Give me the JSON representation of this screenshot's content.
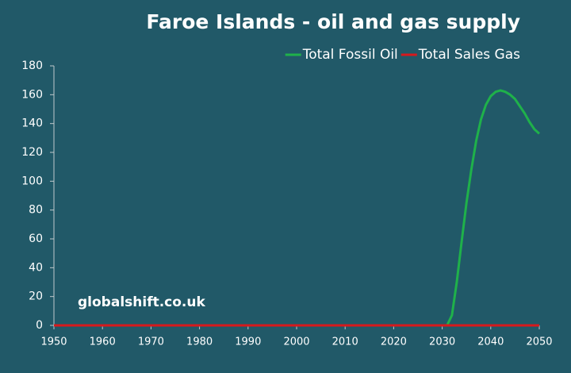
{
  "chart_data": {
    "type": "line",
    "title": "Faroe Islands - oil and gas supply",
    "annotation": "globalshift.co.uk",
    "x": [
      1950,
      2030,
      2031,
      2032,
      2033,
      2034,
      2035,
      2036,
      2037,
      2038,
      2039,
      2040,
      2041,
      2042,
      2043,
      2044,
      2045,
      2046,
      2047,
      2048,
      2049,
      2050
    ],
    "series": [
      {
        "name": "Total Fossil Oil",
        "color": "#1fb14a",
        "values": [
          0,
          0,
          0,
          7,
          30,
          58,
          85,
          108,
          128,
          143,
          153,
          159,
          162,
          163,
          162,
          160,
          157,
          152,
          147,
          141,
          136,
          133
        ]
      },
      {
        "name": "Total Sales Gas",
        "color": "#d7191c",
        "values": [
          0,
          0,
          0,
          0,
          0,
          0,
          0,
          0,
          0,
          0,
          0,
          0,
          0,
          0,
          0,
          0,
          0,
          0,
          0,
          0,
          0,
          0
        ]
      }
    ],
    "xlim": [
      1950,
      2050
    ],
    "xticks": [
      1950,
      1960,
      1970,
      1980,
      1990,
      2000,
      2010,
      2020,
      2030,
      2040,
      2050
    ],
    "ylim": [
      0,
      180
    ],
    "yticks": [
      0,
      20,
      40,
      60,
      80,
      100,
      120,
      140,
      160,
      180
    ],
    "legend": "top-right"
  }
}
